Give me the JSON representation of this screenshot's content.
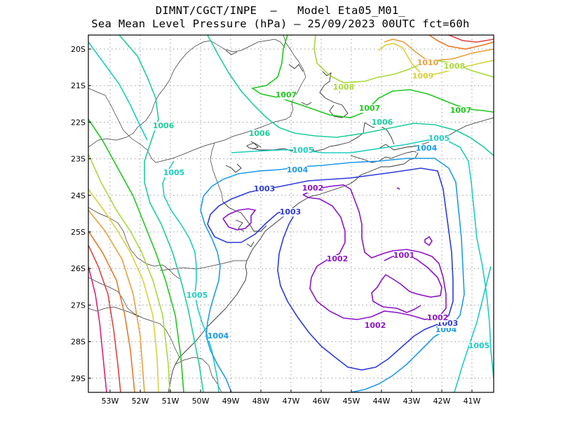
{
  "title_line1": "DIMNT/CGCT/INPE  —   Model Eta05_M01_",
  "title_line2": "Sea Mean Level Pressure (hPa) — 25/09/2023 00UTC fct=60h",
  "lon_ticks": [
    "53W",
    "52W",
    "51W",
    "50W",
    "49W",
    "48W",
    "47W",
    "46W",
    "45W",
    "44W",
    "43W",
    "42W",
    "41W"
  ],
  "lat_ticks": [
    "20S",
    "21S",
    "22S",
    "23S",
    "24S",
    "25S",
    "26S",
    "27S",
    "28S",
    "29S"
  ],
  "contour_labels": [
    {
      "text": "1010",
      "color": "#e8a03c"
    },
    {
      "text": "1009",
      "color": "#d8d23a"
    },
    {
      "text": "1008",
      "color": "#a8d83c"
    },
    {
      "text": "1008",
      "color": "#a8d83c"
    },
    {
      "text": "1007",
      "color": "#1ec81e"
    },
    {
      "text": "1007",
      "color": "#1ec81e"
    },
    {
      "text": "1007",
      "color": "#1ec81e"
    },
    {
      "text": "1006",
      "color": "#1ecd9c"
    },
    {
      "text": "1006",
      "color": "#1ecd9c"
    },
    {
      "text": "1006",
      "color": "#1ecd9c"
    },
    {
      "text": "1005",
      "color": "#1ecdc0"
    },
    {
      "text": "1005",
      "color": "#1ecdc0"
    },
    {
      "text": "1005",
      "color": "#1ecdc0"
    },
    {
      "text": "1005",
      "color": "#1ecdc0"
    },
    {
      "text": "1005",
      "color": "#1ecdc0"
    },
    {
      "text": "1004",
      "color": "#1e9bea"
    },
    {
      "text": "1004",
      "color": "#1e9bea"
    },
    {
      "text": "1004",
      "color": "#1e9bea"
    },
    {
      "text": "1004",
      "color": "#1e9bea"
    },
    {
      "text": "1003",
      "color": "#2d3cdc"
    },
    {
      "text": "1003",
      "color": "#2d3cdc"
    },
    {
      "text": "1003",
      "color": "#2d3cdc"
    },
    {
      "text": "1002",
      "color": "#8c14c8"
    },
    {
      "text": "1002",
      "color": "#8c14c8"
    },
    {
      "text": "1002",
      "color": "#8c14c8"
    },
    {
      "text": "1002",
      "color": "#8c14c8"
    },
    {
      "text": "1001",
      "color": "#8c14c8"
    }
  ],
  "isobar_colors": {
    "1001": "#8c14c8",
    "1002": "#8c14c8",
    "1003": "#2d3cdc",
    "1004": "#1e9bea",
    "1005": "#1ecdc0",
    "1006": "#1ecd9c",
    "1007": "#1ec81e",
    "1008": "#a8d83c",
    "1009": "#d8d23a",
    "1010": "#e8a03c",
    "1011": "#e87828",
    "1012": "#e04040",
    "1013": "#e01e78"
  }
}
